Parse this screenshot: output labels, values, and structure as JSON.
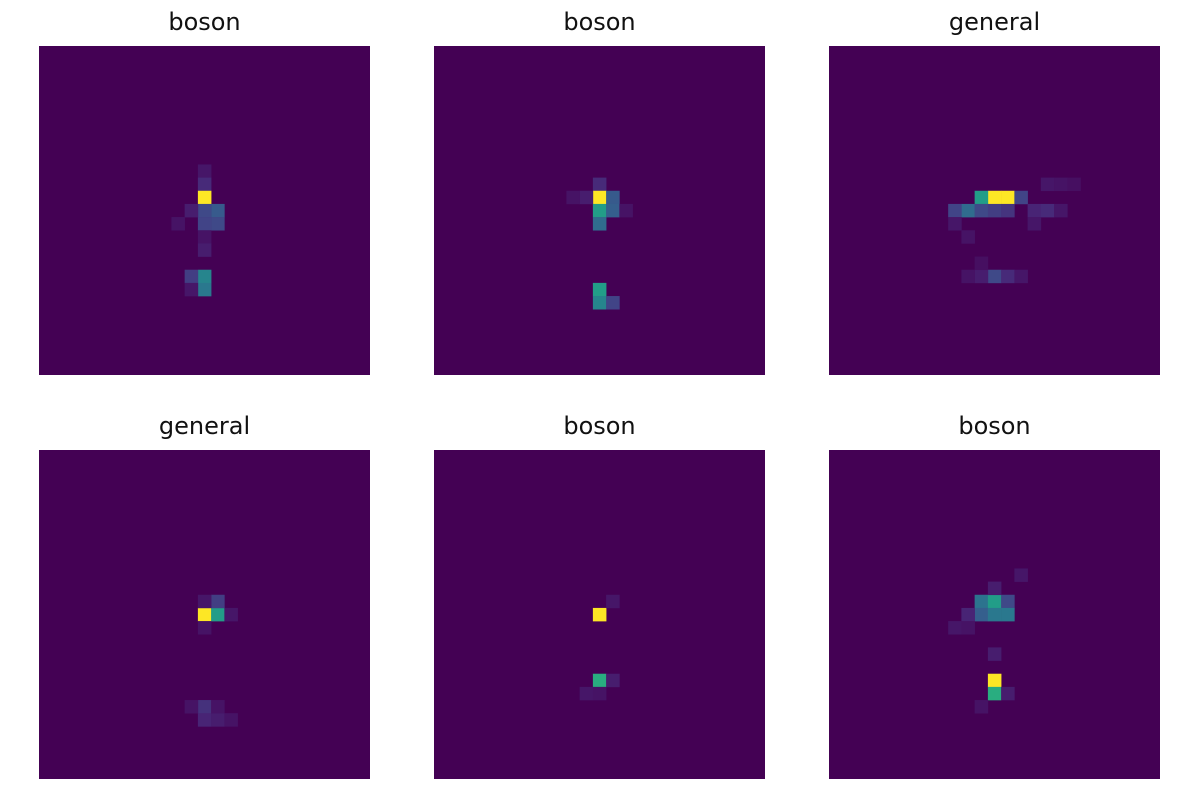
{
  "chart_data": [
    {
      "type": "heatmap",
      "title": "boson",
      "grid": false,
      "colormap": "viridis",
      "grid_size": 25,
      "cells": [
        [
          12,
          9,
          0.06
        ],
        [
          12,
          10,
          0.12
        ],
        [
          12,
          11,
          1.0
        ],
        [
          13,
          12,
          0.28
        ],
        [
          12,
          12,
          0.22
        ],
        [
          13,
          13,
          0.22
        ],
        [
          12,
          13,
          0.2
        ],
        [
          11,
          12,
          0.08
        ],
        [
          10,
          13,
          0.05
        ],
        [
          12,
          14,
          0.05
        ],
        [
          12,
          15,
          0.08
        ],
        [
          12,
          17,
          0.45
        ],
        [
          11,
          17,
          0.18
        ],
        [
          12,
          18,
          0.4
        ],
        [
          11,
          18,
          0.06
        ]
      ]
    },
    {
      "type": "heatmap",
      "title": "boson",
      "grid": false,
      "colormap": "viridis",
      "grid_size": 25,
      "cells": [
        [
          12,
          10,
          0.12
        ],
        [
          12,
          11,
          1.0
        ],
        [
          13,
          11,
          0.28
        ],
        [
          12,
          12,
          0.55
        ],
        [
          13,
          12,
          0.3
        ],
        [
          12,
          13,
          0.35
        ],
        [
          11,
          11,
          0.08
        ],
        [
          10,
          11,
          0.05
        ],
        [
          14,
          12,
          0.05
        ],
        [
          12,
          18,
          0.55
        ],
        [
          12,
          19,
          0.45
        ],
        [
          13,
          19,
          0.2
        ]
      ]
    },
    {
      "type": "heatmap",
      "title": "general",
      "grid": false,
      "colormap": "viridis",
      "grid_size": 25,
      "cells": [
        [
          12,
          11,
          1.0
        ],
        [
          13,
          11,
          1.0
        ],
        [
          11,
          11,
          0.55
        ],
        [
          14,
          11,
          0.2
        ],
        [
          10,
          12,
          0.35
        ],
        [
          9,
          12,
          0.2
        ],
        [
          11,
          12,
          0.22
        ],
        [
          12,
          12,
          0.18
        ],
        [
          13,
          12,
          0.15
        ],
        [
          15,
          12,
          0.1
        ],
        [
          16,
          12,
          0.12
        ],
        [
          17,
          12,
          0.06
        ],
        [
          15,
          13,
          0.06
        ],
        [
          9,
          13,
          0.06
        ],
        [
          10,
          14,
          0.05
        ],
        [
          16,
          10,
          0.06
        ],
        [
          17,
          10,
          0.05
        ],
        [
          18,
          10,
          0.04
        ],
        [
          12,
          17,
          0.22
        ],
        [
          13,
          17,
          0.12
        ],
        [
          11,
          17,
          0.08
        ],
        [
          14,
          17,
          0.06
        ],
        [
          10,
          17,
          0.05
        ],
        [
          11,
          16,
          0.04
        ]
      ]
    },
    {
      "type": "heatmap",
      "title": "general",
      "grid": false,
      "colormap": "viridis",
      "grid_size": 25,
      "cells": [
        [
          12,
          12,
          1.0
        ],
        [
          13,
          12,
          0.55
        ],
        [
          13,
          11,
          0.18
        ],
        [
          12,
          11,
          0.06
        ],
        [
          14,
          12,
          0.06
        ],
        [
          12,
          13,
          0.05
        ],
        [
          12,
          19,
          0.14
        ],
        [
          12,
          20,
          0.1
        ],
        [
          13,
          20,
          0.08
        ],
        [
          11,
          19,
          0.05
        ],
        [
          14,
          20,
          0.05
        ],
        [
          13,
          19,
          0.05
        ]
      ]
    },
    {
      "type": "heatmap",
      "title": "boson",
      "grid": false,
      "colormap": "viridis",
      "grid_size": 25,
      "cells": [
        [
          12,
          12,
          1.0
        ],
        [
          13,
          11,
          0.06
        ],
        [
          12,
          17,
          0.62
        ],
        [
          13,
          17,
          0.08
        ],
        [
          11,
          18,
          0.06
        ],
        [
          12,
          18,
          0.05
        ]
      ]
    },
    {
      "type": "heatmap",
      "title": "boson",
      "grid": false,
      "colormap": "viridis",
      "grid_size": 25,
      "cells": [
        [
          11,
          11,
          0.38
        ],
        [
          12,
          11,
          0.55
        ],
        [
          13,
          11,
          0.22
        ],
        [
          11,
          12,
          0.3
        ],
        [
          12,
          12,
          0.4
        ],
        [
          13,
          12,
          0.4
        ],
        [
          10,
          12,
          0.1
        ],
        [
          9,
          13,
          0.06
        ],
        [
          10,
          13,
          0.05
        ],
        [
          12,
          10,
          0.08
        ],
        [
          14,
          9,
          0.06
        ],
        [
          12,
          15,
          0.08
        ],
        [
          12,
          17,
          1.0
        ],
        [
          12,
          18,
          0.62
        ],
        [
          13,
          18,
          0.08
        ],
        [
          11,
          19,
          0.05
        ]
      ]
    }
  ]
}
